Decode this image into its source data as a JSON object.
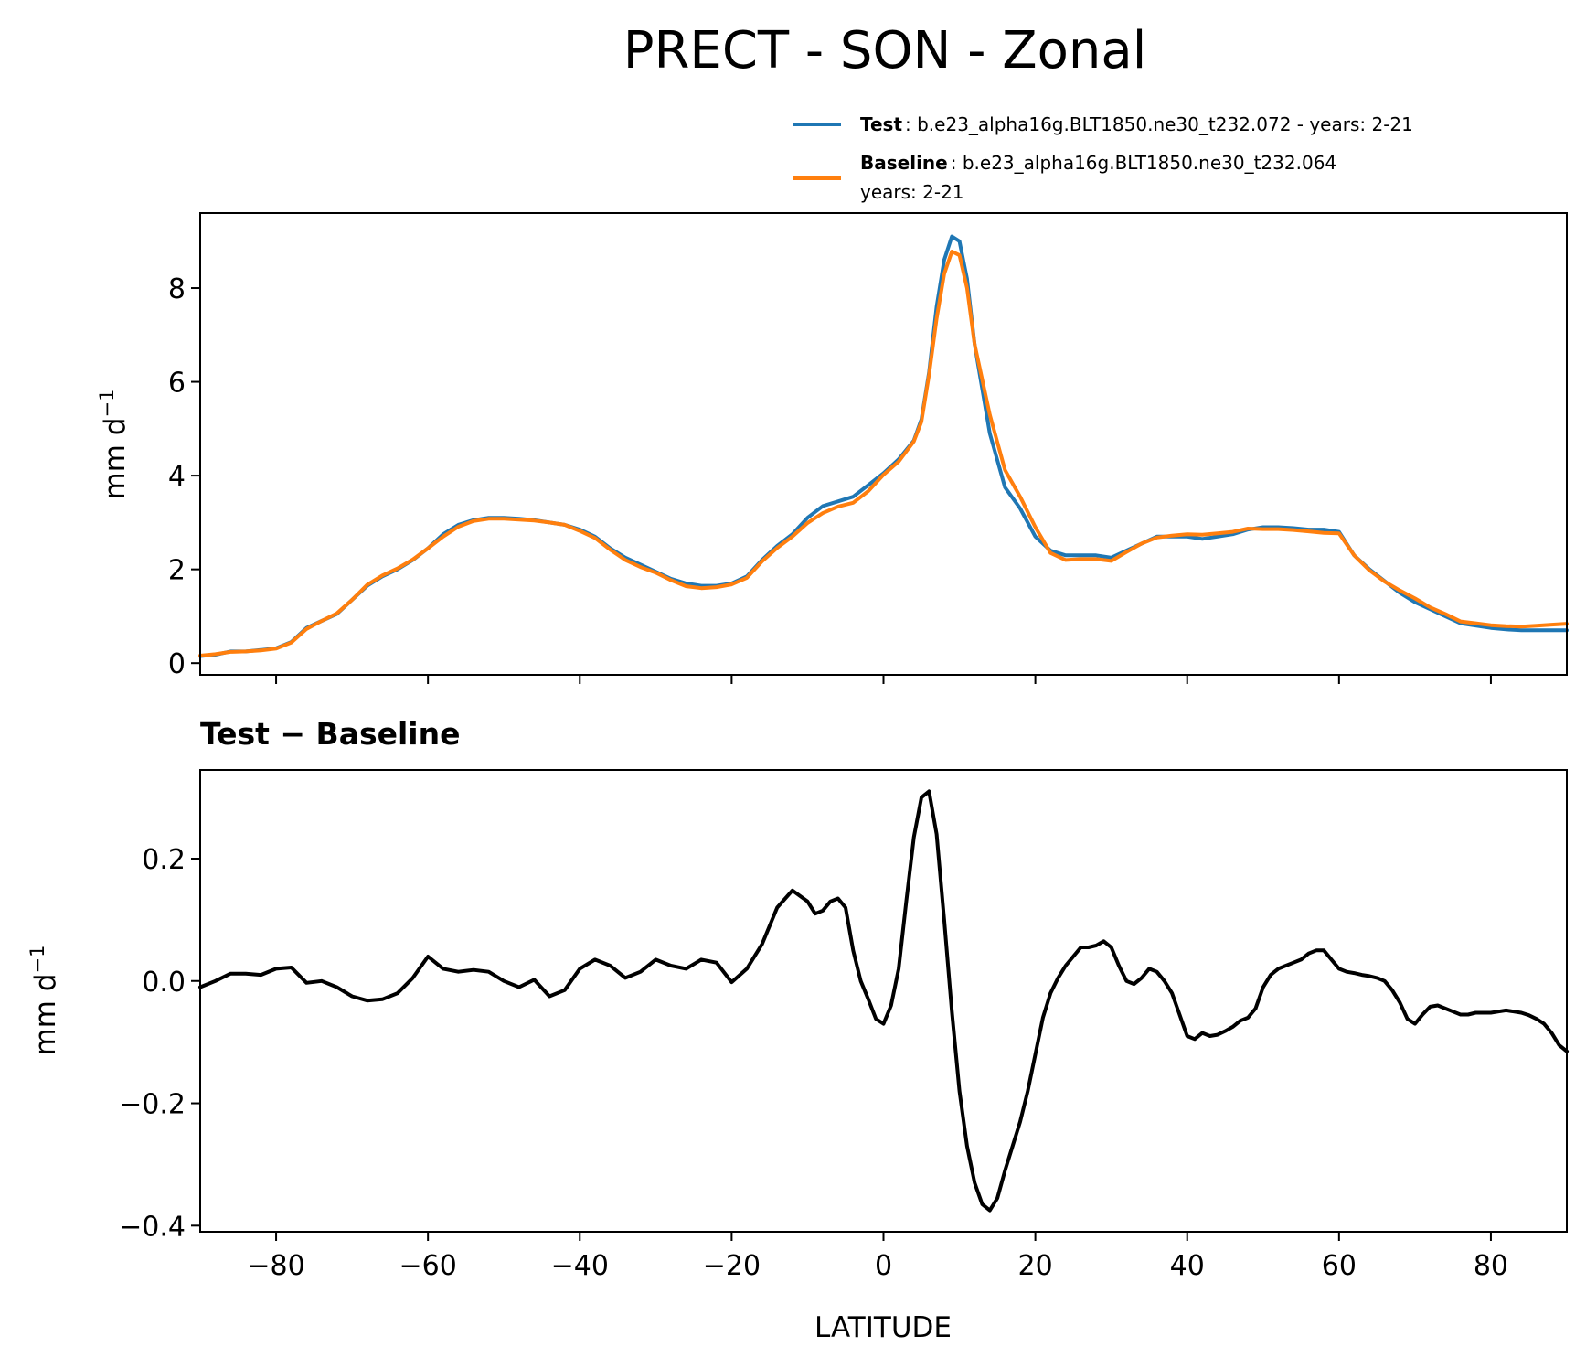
{
  "figure": {
    "title": "PRECT - SON - Zonal"
  },
  "legend": {
    "test_label": "Test",
    "test_text": ": b.e23_alpha16g.BLT1850.ne30_t232.072 - years: 2-21",
    "baseline_label": "Baseline",
    "baseline_text": ": b.e23_alpha16g.BLT1850.ne30_t232.064",
    "baseline_text2": "years: 2-21"
  },
  "colors": {
    "test": "#1f77b4",
    "baseline": "#ff7f0e",
    "diff": "#000000"
  },
  "chart_data": [
    {
      "type": "line",
      "name": "top",
      "xlabel": "",
      "ylabel_main": "mm d",
      "ylabel_sup": "−1",
      "xlim": [
        -90,
        90
      ],
      "ylim": [
        -0.25,
        9.6
      ],
      "yticks": [
        0,
        2,
        4,
        6,
        8
      ],
      "ytick_labels": [
        "0",
        "2",
        "4",
        "6",
        "8"
      ],
      "xticks": [
        -80,
        -60,
        -40,
        -20,
        0,
        20,
        40,
        60,
        80
      ],
      "series": [
        {
          "name": "Test",
          "color": "#1f77b4",
          "x": [
            -90,
            -88,
            -86,
            -84,
            -82,
            -80,
            -78,
            -76,
            -74,
            -72,
            -70,
            -68,
            -66,
            -64,
            -62,
            -60,
            -58,
            -56,
            -54,
            -52,
            -50,
            -48,
            -46,
            -44,
            -42,
            -40,
            -38,
            -36,
            -34,
            -32,
            -30,
            -28,
            -26,
            -24,
            -22,
            -20,
            -18,
            -16,
            -14,
            -12,
            -10,
            -8,
            -6,
            -4,
            -2,
            0,
            2,
            4,
            5,
            6,
            7,
            8,
            9,
            10,
            11,
            12,
            14,
            16,
            18,
            20,
            22,
            24,
            26,
            28,
            30,
            32,
            34,
            36,
            38,
            40,
            42,
            44,
            46,
            48,
            50,
            52,
            54,
            56,
            58,
            60,
            62,
            64,
            66,
            68,
            70,
            72,
            74,
            76,
            78,
            80,
            82,
            84,
            86,
            88,
            90
          ],
          "y": [
            0.15,
            0.18,
            0.25,
            0.25,
            0.28,
            0.32,
            0.45,
            0.75,
            0.9,
            1.05,
            1.35,
            1.65,
            1.85,
            2.0,
            2.2,
            2.45,
            2.75,
            2.95,
            3.05,
            3.1,
            3.1,
            3.08,
            3.05,
            3.0,
            2.95,
            2.85,
            2.7,
            2.45,
            2.25,
            2.1,
            1.95,
            1.8,
            1.7,
            1.65,
            1.65,
            1.7,
            1.85,
            2.2,
            2.5,
            2.75,
            3.1,
            3.35,
            3.45,
            3.55,
            3.8,
            4.05,
            4.35,
            4.75,
            5.2,
            6.2,
            7.6,
            8.6,
            9.1,
            9.0,
            8.2,
            6.8,
            4.9,
            3.75,
            3.3,
            2.7,
            2.4,
            2.3,
            2.3,
            2.3,
            2.25,
            2.4,
            2.55,
            2.7,
            2.7,
            2.7,
            2.65,
            2.7,
            2.75,
            2.85,
            2.9,
            2.9,
            2.88,
            2.85,
            2.85,
            2.8,
            2.3,
            2.0,
            1.75,
            1.5,
            1.3,
            1.15,
            1.0,
            0.85,
            0.8,
            0.75,
            0.72,
            0.7,
            0.7,
            0.7,
            0.7
          ]
        },
        {
          "name": "Baseline",
          "color": "#ff7f0e",
          "x": [
            -90,
            -88,
            -86,
            -84,
            -82,
            -80,
            -78,
            -76,
            -74,
            -72,
            -70,
            -68,
            -66,
            -64,
            -62,
            -60,
            -58,
            -56,
            -54,
            -52,
            -50,
            -48,
            -46,
            -44,
            -42,
            -40,
            -38,
            -36,
            -34,
            -32,
            -30,
            -28,
            -26,
            -24,
            -22,
            -20,
            -18,
            -16,
            -14,
            -12,
            -10,
            -8,
            -6,
            -4,
            -2,
            0,
            2,
            4,
            5,
            6,
            7,
            8,
            9,
            10,
            11,
            12,
            14,
            16,
            18,
            20,
            22,
            24,
            26,
            28,
            30,
            32,
            34,
            36,
            38,
            40,
            42,
            44,
            46,
            48,
            50,
            52,
            54,
            56,
            58,
            60,
            62,
            64,
            66,
            68,
            70,
            72,
            74,
            76,
            78,
            80,
            82,
            84,
            86,
            88,
            90
          ],
          "y": [
            0.16,
            0.19,
            0.24,
            0.25,
            0.27,
            0.31,
            0.44,
            0.73,
            0.9,
            1.06,
            1.35,
            1.67,
            1.87,
            2.02,
            2.21,
            2.45,
            2.7,
            2.91,
            3.03,
            3.08,
            3.08,
            3.06,
            3.04,
            3.0,
            2.95,
            2.82,
            2.67,
            2.42,
            2.2,
            2.05,
            1.93,
            1.77,
            1.64,
            1.6,
            1.62,
            1.68,
            1.82,
            2.17,
            2.46,
            2.7,
            2.99,
            3.2,
            3.34,
            3.42,
            3.67,
            4.02,
            4.3,
            4.73,
            5.15,
            6.15,
            7.35,
            8.3,
            8.78,
            8.7,
            8.0,
            6.8,
            5.3,
            4.12,
            3.55,
            2.9,
            2.35,
            2.2,
            2.22,
            2.22,
            2.18,
            2.37,
            2.55,
            2.68,
            2.72,
            2.75,
            2.74,
            2.77,
            2.8,
            2.87,
            2.86,
            2.86,
            2.84,
            2.81,
            2.78,
            2.77,
            2.3,
            1.98,
            1.74,
            1.55,
            1.38,
            1.19,
            1.05,
            0.89,
            0.85,
            0.81,
            0.79,
            0.78,
            0.8,
            0.82,
            0.84
          ]
        }
      ]
    },
    {
      "type": "line",
      "name": "bottom",
      "title": "Test − Baseline",
      "xlabel": "LATITUDE",
      "ylabel_main": "mm d",
      "ylabel_sup": "−1",
      "xlim": [
        -90,
        90
      ],
      "ylim": [
        -0.41,
        0.345
      ],
      "yticks": [
        -0.4,
        -0.2,
        0.0,
        0.2
      ],
      "ytick_labels": [
        "−0.4",
        "−0.2",
        "0.0",
        "0.2"
      ],
      "xticks": [
        -80,
        -60,
        -40,
        -20,
        0,
        20,
        40,
        60,
        80
      ],
      "xtick_labels": [
        "−80",
        "−60",
        "−40",
        "−20",
        "0",
        "20",
        "40",
        "60",
        "80"
      ],
      "series": [
        {
          "name": "Test − Baseline",
          "color": "#000000",
          "x": [
            -90,
            -88,
            -86,
            -84,
            -82,
            -80,
            -78,
            -76,
            -74,
            -72,
            -70,
            -68,
            -66,
            -64,
            -62,
            -60,
            -58,
            -56,
            -54,
            -52,
            -50,
            -48,
            -46,
            -44,
            -42,
            -40,
            -38,
            -36,
            -34,
            -32,
            -30,
            -28,
            -26,
            -24,
            -22,
            -20,
            -18,
            -16,
            -14,
            -12,
            -10,
            -9,
            -8,
            -7,
            -6,
            -5,
            -4,
            -3,
            -2,
            -1,
            0,
            1,
            2,
            3,
            4,
            5,
            6,
            7,
            8,
            9,
            10,
            11,
            12,
            13,
            14,
            15,
            16,
            17,
            18,
            19,
            20,
            21,
            22,
            23,
            24,
            25,
            26,
            27,
            28,
            29,
            30,
            31,
            32,
            33,
            34,
            35,
            36,
            37,
            38,
            39,
            40,
            41,
            42,
            43,
            44,
            45,
            46,
            47,
            48,
            49,
            50,
            51,
            52,
            53,
            54,
            55,
            56,
            57,
            58,
            59,
            60,
            61,
            62,
            63,
            64,
            65,
            66,
            67,
            68,
            69,
            70,
            71,
            72,
            73,
            74,
            75,
            76,
            77,
            78,
            79,
            80,
            81,
            82,
            83,
            84,
            85,
            86,
            87,
            88,
            89,
            90
          ],
          "y": [
            -0.01,
            0.0,
            0.012,
            0.012,
            0.01,
            0.02,
            0.022,
            -0.003,
            0.0,
            -0.01,
            -0.025,
            -0.032,
            -0.03,
            -0.02,
            0.005,
            0.04,
            0.02,
            0.015,
            0.018,
            0.015,
            0.0,
            -0.01,
            0.002,
            -0.025,
            -0.015,
            0.02,
            0.035,
            0.025,
            0.005,
            0.015,
            0.035,
            0.025,
            0.02,
            0.035,
            0.03,
            -0.002,
            0.02,
            0.06,
            0.12,
            0.148,
            0.13,
            0.11,
            0.115,
            0.13,
            0.135,
            0.12,
            0.05,
            0.0,
            -0.03,
            -0.062,
            -0.07,
            -0.04,
            0.02,
            0.13,
            0.235,
            0.3,
            0.31,
            0.24,
            0.1,
            -0.05,
            -0.18,
            -0.27,
            -0.33,
            -0.365,
            -0.375,
            -0.355,
            -0.31,
            -0.27,
            -0.23,
            -0.18,
            -0.12,
            -0.06,
            -0.02,
            0.005,
            0.025,
            0.04,
            0.055,
            0.055,
            0.058,
            0.065,
            0.055,
            0.025,
            0.0,
            -0.005,
            0.005,
            0.02,
            0.015,
            0.0,
            -0.02,
            -0.055,
            -0.09,
            -0.095,
            -0.085,
            -0.09,
            -0.088,
            -0.082,
            -0.075,
            -0.065,
            -0.06,
            -0.045,
            -0.01,
            0.01,
            0.02,
            0.025,
            0.03,
            0.035,
            0.045,
            0.05,
            0.05,
            0.035,
            0.02,
            0.015,
            0.013,
            0.01,
            0.008,
            0.005,
            0.0,
            -0.015,
            -0.035,
            -0.062,
            -0.07,
            -0.055,
            -0.042,
            -0.04,
            -0.045,
            -0.05,
            -0.055,
            -0.055,
            -0.052,
            -0.052,
            -0.052,
            -0.05,
            -0.048,
            -0.05,
            -0.052,
            -0.056,
            -0.062,
            -0.07,
            -0.085,
            -0.105,
            -0.115
          ]
        }
      ]
    }
  ]
}
